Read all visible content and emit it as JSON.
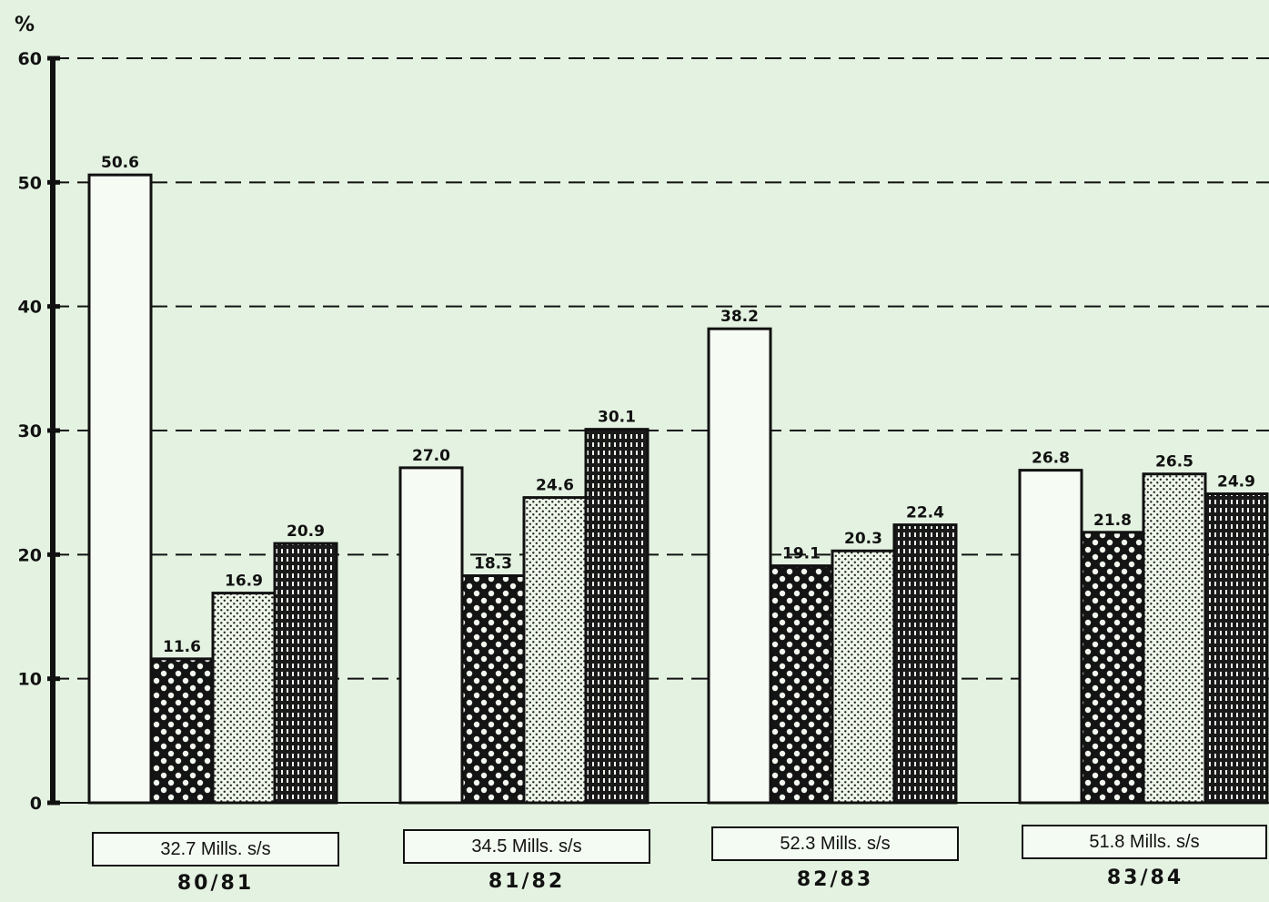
{
  "chart_data": {
    "type": "bar",
    "title": "",
    "xlabel": "",
    "ylabel": "%",
    "ylim": [
      0,
      60
    ],
    "yticks": [
      0,
      10,
      20,
      30,
      40,
      50,
      60
    ],
    "grid": "dashed horizontal",
    "legend": "none",
    "categories": [
      "80/81",
      "81/82",
      "82/83",
      "83/84"
    ],
    "category_totals": [
      "32.7 Mills. s/s",
      "34.5 Mills. s/s",
      "52.3 Mills. s/s",
      "51.8 Mills. s/s"
    ],
    "series": [
      {
        "pattern": "plain",
        "values": [
          50.6,
          27.0,
          38.2,
          26.8
        ],
        "labels": [
          "50.6",
          "27.0",
          "38.2",
          "26.8"
        ]
      },
      {
        "pattern": "dots-on-dark",
        "values": [
          11.6,
          18.3,
          19.1,
          21.8
        ],
        "labels": [
          "11.6",
          "18.3",
          "19.1",
          "21.8"
        ]
      },
      {
        "pattern": "fine-dots",
        "values": [
          16.9,
          24.6,
          20.3,
          26.5
        ],
        "labels": [
          "16.9",
          "24.6",
          "20.3",
          "26.5"
        ]
      },
      {
        "pattern": "vertical-hatch",
        "values": [
          20.9,
          30.1,
          22.4,
          24.9
        ],
        "labels": [
          "20.9",
          "30.1",
          "22.4",
          "24.9"
        ]
      }
    ]
  },
  "colors": {
    "background": "#e4f3e1",
    "ink": "#111111",
    "bar_plain": "#f6fbf4"
  }
}
